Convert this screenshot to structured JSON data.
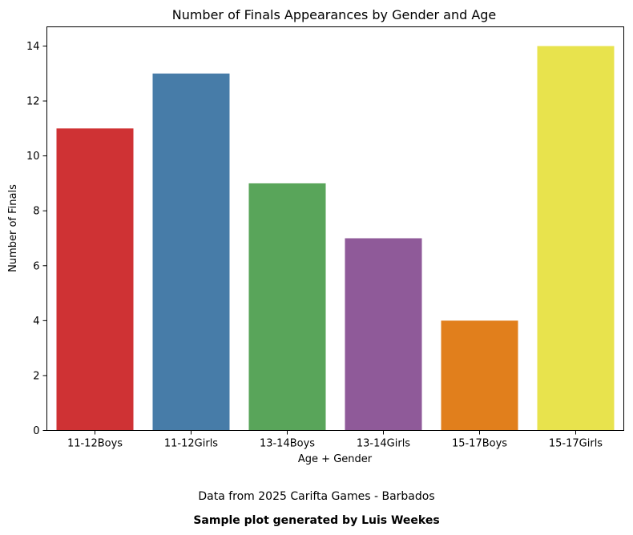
{
  "chart_data": {
    "type": "bar",
    "title": "Number of Finals Appearances by Gender and Age",
    "xlabel": "Age + Gender",
    "ylabel": "Number of Finals",
    "categories": [
      "11-12Boys",
      "11-12Girls",
      "13-14Boys",
      "13-14Girls",
      "15-17Boys",
      "15-17Girls"
    ],
    "values": [
      11,
      13,
      9,
      7,
      4,
      14
    ],
    "colors": [
      "#cf3234",
      "#477ca8",
      "#59a55a",
      "#8f5a99",
      "#e17f1c",
      "#e8e34d"
    ],
    "yticks": [
      "0",
      "2",
      "4",
      "6",
      "8",
      "10",
      "12",
      "14"
    ],
    "ylim": [
      0,
      14.7
    ],
    "grid": false,
    "legend": "none"
  },
  "captions": {
    "source": "Data from 2025 Carifta Games - Barbados",
    "credit": "Sample plot generated by Luis Weekes"
  }
}
